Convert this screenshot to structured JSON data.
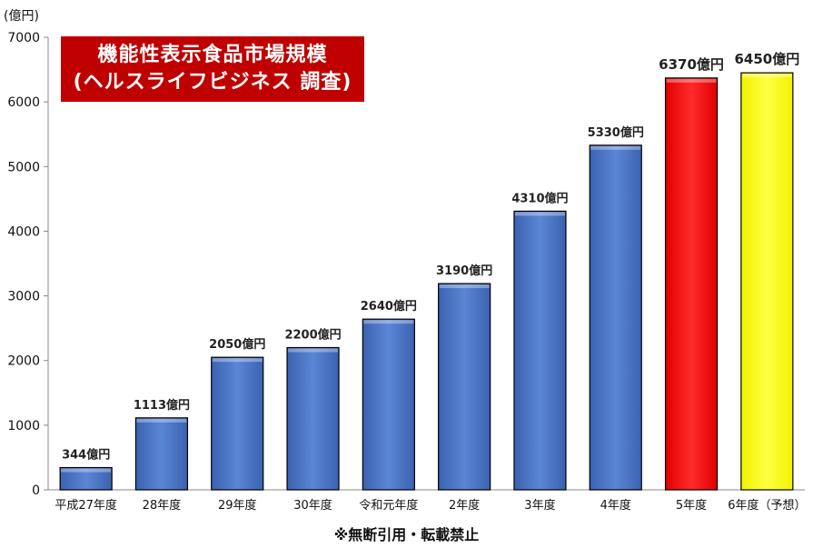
{
  "title": {
    "line1": "機能性表示食品市場規模",
    "line2": "(ヘルスライフビジネス 調査)",
    "bg_color": "#c00000"
  },
  "footer_note": "※無断引用・転載禁止",
  "chart_data": {
    "type": "bar",
    "unit_label": "(億円)",
    "ylim": [
      0,
      7000
    ],
    "yticks": [
      0,
      1000,
      2000,
      3000,
      4000,
      5000,
      6000,
      7000
    ],
    "grid": false,
    "categories": [
      "平成27年度",
      "28年度",
      "29年度",
      "30年度",
      "令和元年度",
      "2年度",
      "3年度",
      "4年度",
      "5年度",
      "6年度（予想）"
    ],
    "values": [
      344,
      1113,
      2050,
      2200,
      2640,
      3190,
      4310,
      5330,
      6370,
      6450
    ],
    "data_labels": [
      "344億円",
      "1113億円",
      "2050億円",
      "2200億円",
      "2640億円",
      "3190億円",
      "4310億円",
      "5330億円",
      "6370億円",
      "6450億円"
    ],
    "colors": [
      "#4472c4",
      "#4472c4",
      "#4472c4",
      "#4472c4",
      "#4472c4",
      "#4472c4",
      "#4472c4",
      "#4472c4",
      "#ff0000",
      "#ffff00"
    ]
  }
}
